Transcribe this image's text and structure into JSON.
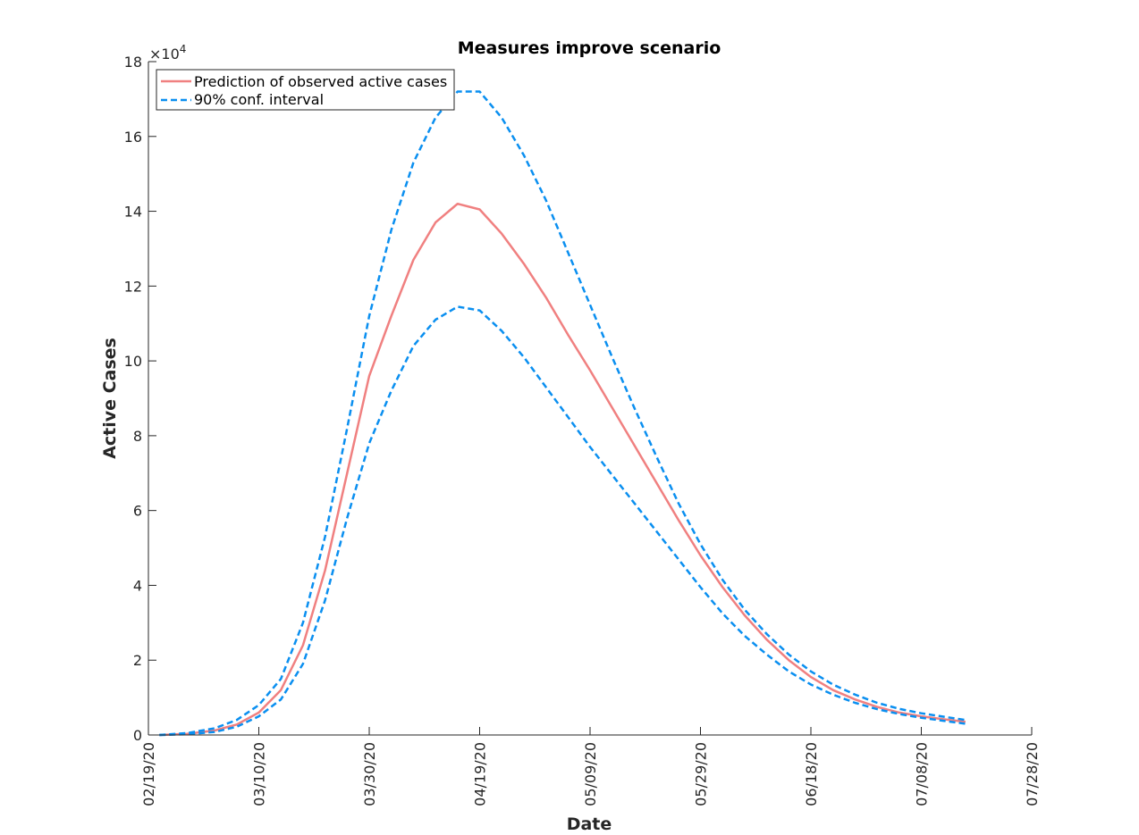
{
  "chart_data": {
    "type": "line",
    "title": "Measures improve scenario",
    "xlabel": "Date",
    "ylabel": "Active Cases",
    "y_exponent_label": "×10",
    "y_exponent_power": "4",
    "x_is_date": true,
    "x_range": [
      "02/19/20",
      "07/28/20"
    ],
    "ylim": [
      0,
      180000
    ],
    "grid": false,
    "legend_position": "top-left",
    "x_ticks": [
      "02/19/20",
      "03/10/20",
      "03/30/20",
      "04/19/20",
      "05/09/20",
      "05/29/20",
      "06/18/20",
      "07/08/20",
      "07/28/20"
    ],
    "y_ticks": [
      0,
      20000,
      40000,
      60000,
      80000,
      100000,
      120000,
      140000,
      160000,
      180000
    ],
    "y_tick_labels": [
      "0",
      "2",
      "4",
      "6",
      "8",
      "10",
      "12",
      "14",
      "16",
      "18"
    ],
    "x": [
      "02/21/20",
      "02/26/20",
      "03/02/20",
      "03/06/20",
      "03/10/20",
      "03/14/20",
      "03/18/20",
      "03/22/20",
      "03/26/20",
      "03/30/20",
      "04/03/20",
      "04/07/20",
      "04/11/20",
      "04/15/20",
      "04/19/20",
      "04/23/20",
      "04/27/20",
      "05/01/20",
      "05/05/20",
      "05/09/20",
      "05/13/20",
      "05/17/20",
      "05/21/20",
      "05/25/20",
      "05/29/20",
      "06/02/20",
      "06/06/20",
      "06/10/20",
      "06/14/20",
      "06/18/20",
      "06/22/20",
      "06/26/20",
      "06/30/20",
      "07/04/20",
      "07/08/20",
      "07/12/20",
      "07/16/20"
    ],
    "series": [
      {
        "name": "Prediction of observed active cases",
        "color": "#f08080",
        "style": "solid",
        "values": [
          0,
          300,
          1200,
          2800,
          6000,
          12000,
          24000,
          44000,
          70000,
          96000,
          112000,
          127000,
          137000,
          142000,
          140500,
          134000,
          126000,
          117000,
          107000,
          97500,
          87500,
          77500,
          67500,
          57500,
          48000,
          39500,
          32000,
          25500,
          20000,
          15500,
          12000,
          9500,
          7500,
          6000,
          5000,
          4200,
          3500
        ]
      },
      {
        "name": "90% conf. interval",
        "color": "#0a8ff0",
        "style": "dashed",
        "values": [
          0,
          500,
          1800,
          4000,
          8000,
          15000,
          30000,
          53000,
          82000,
          112000,
          135000,
          153000,
          165000,
          172000,
          172000,
          165000,
          155000,
          143000,
          129000,
          115000,
          101000,
          87500,
          74500,
          62000,
          51000,
          41500,
          33500,
          27000,
          21500,
          17000,
          13500,
          10800,
          8600,
          7000,
          5800,
          4900,
          4000
        ]
      },
      {
        "name": "",
        "color": "#0a8ff0",
        "style": "dashed",
        "values": [
          0,
          200,
          800,
          2200,
          5000,
          9500,
          19000,
          36000,
          58000,
          78000,
          92000,
          104000,
          111000,
          114500,
          113500,
          108000,
          101000,
          93000,
          85000,
          77000,
          69500,
          62000,
          54500,
          47000,
          39500,
          32500,
          26500,
          21500,
          17000,
          13500,
          10800,
          8600,
          6900,
          5600,
          4600,
          3800,
          3000
        ]
      }
    ]
  }
}
